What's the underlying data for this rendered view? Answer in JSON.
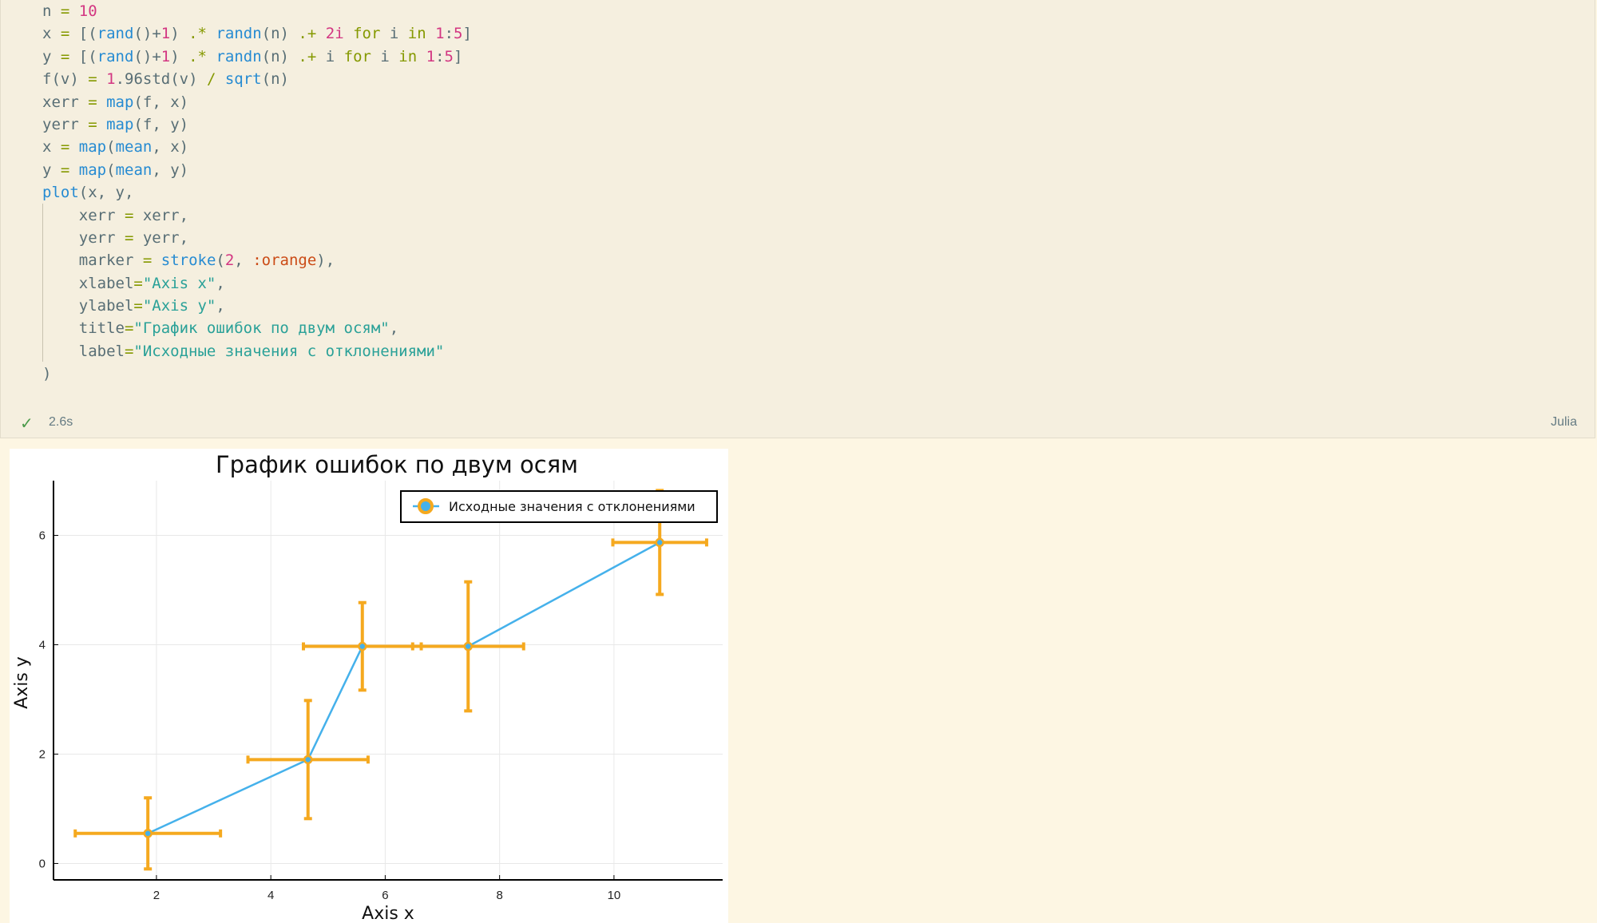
{
  "cell": {
    "code_lines": [
      "n = 10",
      "x = [(rand()+1) .* randn(n) .+ 2i for i in 1:5]",
      "y = [(rand()+1) .* randn(n) .+ i for i in 1:5]",
      "f(v) = 1.96std(v) / sqrt(n)",
      "xerr = map(f, x)",
      "yerr = map(f, y)",
      "x = map(mean, x)",
      "y = map(mean, y)",
      "plot(x, y,",
      "    xerr = xerr,",
      "    yerr = yerr,",
      "    marker = stroke(2, :orange),",
      "    xlabel=\"Axis x\",",
      "    ylabel=\"Axis y\",",
      "    title=\"График ошибок по двум осям\",",
      "    label=\"Исходные значения с отклонениями\"",
      ")"
    ],
    "status": {
      "check_icon": "check-icon",
      "exec_time": "2.6s",
      "language": "Julia"
    }
  },
  "colors": {
    "accent_line": "#45b1eb",
    "marker_orange": "#f5a91f",
    "cell_bg": "#f5efdf",
    "page_bg": "#fdf6e3"
  },
  "chart_data": {
    "type": "line",
    "title": "График ошибок по двум осям",
    "xlabel": "Axis x",
    "ylabel": "Axis y",
    "xlim": [
      0.2,
      11.9
    ],
    "ylim": [
      -0.3,
      7.0
    ],
    "xticks": [
      2,
      4,
      6,
      8,
      10
    ],
    "yticks": [
      0,
      2,
      4,
      6
    ],
    "grid": true,
    "legend_position": "top-right",
    "series": [
      {
        "name": "Исходные значения с отклонениями",
        "x": [
          1.85,
          4.65,
          5.6,
          7.45,
          10.8
        ],
        "y": [
          0.55,
          1.9,
          3.97,
          3.97,
          5.87
        ],
        "xerr": [
          1.27,
          1.05,
          1.03,
          0.97,
          0.82
        ],
        "yerr": [
          0.65,
          1.08,
          0.8,
          1.18,
          0.95
        ]
      }
    ]
  }
}
